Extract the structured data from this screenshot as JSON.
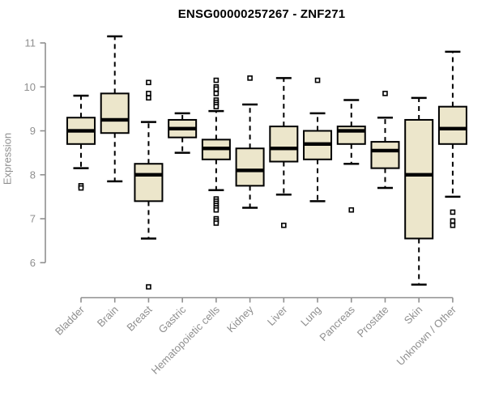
{
  "window": {
    "background_color": "#ffffff"
  },
  "chart_data": {
    "type": "box",
    "title": "ENSG00000257267 - ZNF271",
    "xlabel": "",
    "ylabel": "Expression",
    "yticks": [
      6,
      7,
      8,
      9,
      10,
      11
    ],
    "ylim": [
      5.2,
      11.3
    ],
    "grid": false,
    "legend": null,
    "categories": [
      "Bladder",
      "Brain",
      "Breast",
      "Gastric",
      "Hematopoietic cells",
      "Kidney",
      "Liver",
      "Lung",
      "Pancreas",
      "Prostate",
      "Skin",
      "Unknown / Other"
    ],
    "boxes": [
      {
        "category": "Bladder",
        "whisker_low": 8.15,
        "q1": 8.7,
        "median": 9.0,
        "q3": 9.3,
        "whisker_high": 9.8,
        "outliers": [
          7.75,
          7.7
        ]
      },
      {
        "category": "Brain",
        "whisker_low": 7.85,
        "q1": 8.95,
        "median": 9.25,
        "q3": 9.85,
        "whisker_high": 11.15,
        "outliers": []
      },
      {
        "category": "Breast",
        "whisker_low": 6.55,
        "q1": 7.4,
        "median": 8.0,
        "q3": 8.25,
        "whisker_high": 9.2,
        "outliers": [
          10.1,
          9.85,
          9.75,
          5.45
        ]
      },
      {
        "category": "Gastric",
        "whisker_low": 8.5,
        "q1": 8.85,
        "median": 9.05,
        "q3": 9.25,
        "whisker_high": 9.4,
        "outliers": []
      },
      {
        "category": "Hematopoietic cells",
        "whisker_low": 7.65,
        "q1": 8.35,
        "median": 8.6,
        "q3": 8.8,
        "whisker_high": 9.45,
        "outliers": [
          10.15,
          10.0,
          9.95,
          9.85,
          9.7,
          9.65,
          9.6,
          9.55,
          7.45,
          7.4,
          7.35,
          7.3,
          7.25,
          7.2,
          7.0,
          6.95,
          6.9
        ]
      },
      {
        "category": "Kidney",
        "whisker_low": 7.25,
        "q1": 7.75,
        "median": 8.1,
        "q3": 8.6,
        "whisker_high": 9.6,
        "outliers": [
          10.2
        ]
      },
      {
        "category": "Liver",
        "whisker_low": 7.55,
        "q1": 8.3,
        "median": 8.6,
        "q3": 9.1,
        "whisker_high": 10.2,
        "outliers": [
          6.85
        ]
      },
      {
        "category": "Lung",
        "whisker_low": 7.4,
        "q1": 8.35,
        "median": 8.7,
        "q3": 9.0,
        "whisker_high": 9.4,
        "outliers": [
          10.15
        ]
      },
      {
        "category": "Pancreas",
        "whisker_low": 8.25,
        "q1": 8.7,
        "median": 9.0,
        "q3": 9.1,
        "whisker_high": 9.7,
        "outliers": [
          7.2
        ]
      },
      {
        "category": "Prostate",
        "whisker_low": 7.7,
        "q1": 8.15,
        "median": 8.55,
        "q3": 8.75,
        "whisker_high": 9.3,
        "outliers": [
          9.85
        ]
      },
      {
        "category": "Skin",
        "whisker_low": 5.5,
        "q1": 6.55,
        "median": 8.0,
        "q3": 9.25,
        "whisker_high": 9.75,
        "outliers": []
      },
      {
        "category": "Unknown / Other",
        "whisker_low": 7.5,
        "q1": 8.7,
        "median": 9.05,
        "q3": 9.55,
        "whisker_high": 10.8,
        "outliers": [
          7.15,
          6.95,
          6.85
        ]
      }
    ],
    "colors": {
      "box_fill": "#ece6cb",
      "box_stroke": "#000000",
      "median": "#000000",
      "whisker": "#000000",
      "outlier_stroke": "#000000",
      "outlier_fill": "#ffffff",
      "axis": "#909090",
      "tick_label": "#8f8f8f",
      "title": "#000000"
    }
  }
}
